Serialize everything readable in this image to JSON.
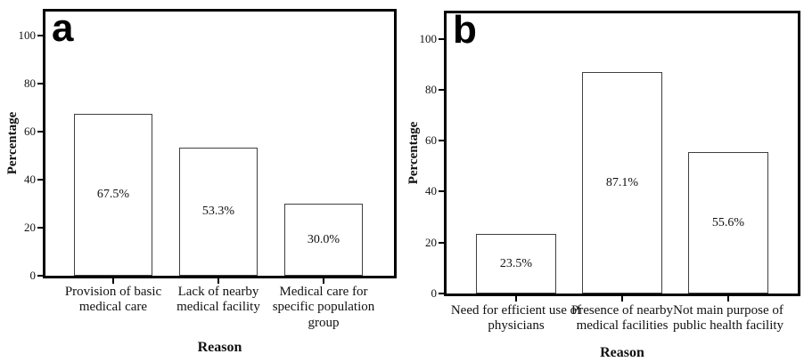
{
  "colors": {
    "background": "#ffffff",
    "frame": "#000000",
    "bar_fill": "#ffffff",
    "bar_border": "#404040",
    "text": "#111111"
  },
  "chart_data": [
    {
      "type": "bar",
      "panel_letter": "a",
      "title": "",
      "xlabel": "Reason",
      "ylabel": "Percentage",
      "categories": [
        "Provision of basic medical care",
        "Lack of nearby medical facility",
        "Medical care for specific population group"
      ],
      "values": [
        67.5,
        53.3,
        30.0
      ],
      "value_labels": [
        "67.5%",
        "53.3%",
        "30.0%"
      ],
      "yticks": [
        0,
        20,
        40,
        60,
        80,
        100
      ],
      "ylim": [
        0,
        110
      ],
      "grid": false,
      "legend": "none"
    },
    {
      "type": "bar",
      "panel_letter": "b",
      "title": "",
      "xlabel": "Reason",
      "ylabel": "Percentage",
      "categories": [
        "Need for efficient use of physicians",
        "Presence of nearby medical facilities",
        "Not main purpose of public health facility"
      ],
      "values": [
        23.5,
        87.1,
        55.6
      ],
      "value_labels": [
        "23.5%",
        "87.1%",
        "55.6%"
      ],
      "yticks": [
        0,
        20,
        40,
        60,
        80,
        100
      ],
      "ylim": [
        0,
        110
      ],
      "grid": false,
      "legend": "none"
    }
  ]
}
